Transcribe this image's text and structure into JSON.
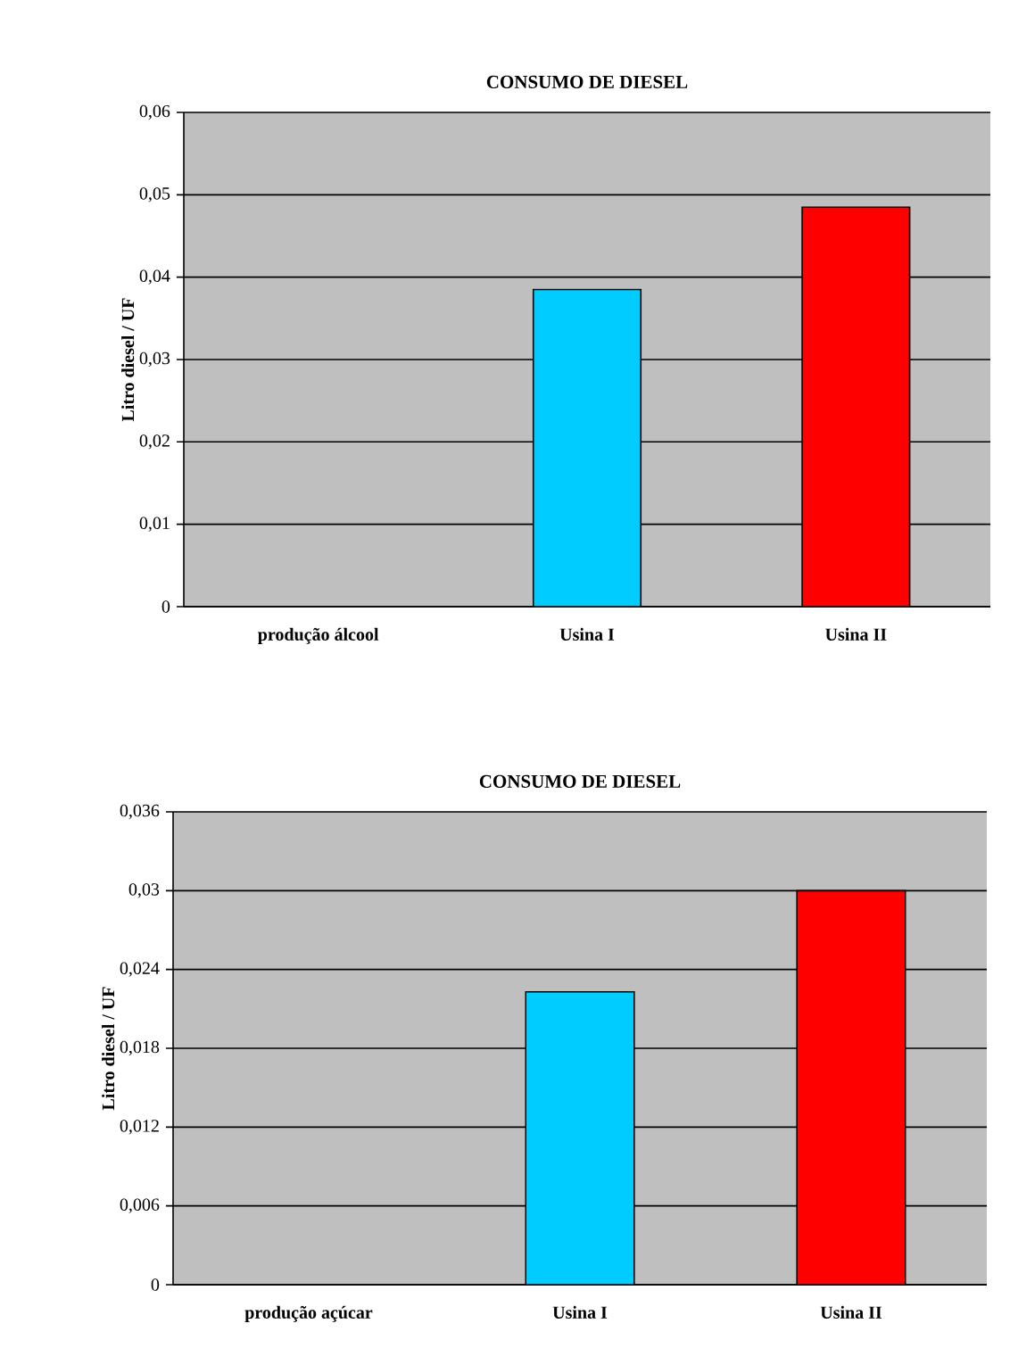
{
  "chart_data": [
    {
      "type": "bar",
      "title": "CONSUMO DE DIESEL",
      "ylabel": "Litro diesel / UF",
      "categories": [
        "produção álcool",
        "Usina I",
        "Usina II"
      ],
      "values": [
        null,
        0.0385,
        0.0485
      ],
      "colors": [
        null,
        "#00ccff",
        "#ff0000"
      ],
      "ylim": [
        0,
        0.06
      ],
      "yticks": [
        0,
        {
          "value": 0.01,
          "label": "0,01"
        },
        {
          "value": 0.02,
          "label": "0,02"
        },
        {
          "value": 0.03,
          "label": "0,03"
        },
        {
          "value": 0.04,
          "label": "0,04"
        },
        {
          "value": 0.05,
          "label": "0,05"
        },
        {
          "value": 0.06,
          "label": "0,06"
        }
      ],
      "grid": "y"
    },
    {
      "type": "bar",
      "title": "CONSUMO DE DIESEL",
      "ylabel": "Litro diesel / UF",
      "categories": [
        "produção açúcar",
        "Usina I",
        "Usina II"
      ],
      "values": [
        null,
        0.0223,
        0.03
      ],
      "colors": [
        null,
        "#00ccff",
        "#ff0000"
      ],
      "ylim": [
        0,
        0.036
      ],
      "yticks": [
        0,
        {
          "value": 0.006,
          "label": "0,006"
        },
        {
          "value": 0.012,
          "label": "0,012"
        },
        {
          "value": 0.018,
          "label": "0,018"
        },
        {
          "value": 0.024,
          "label": "0,024"
        },
        {
          "value": 0.03,
          "label": "0,03"
        },
        {
          "value": 0.036,
          "label": "0,036"
        }
      ],
      "grid": "y"
    }
  ]
}
